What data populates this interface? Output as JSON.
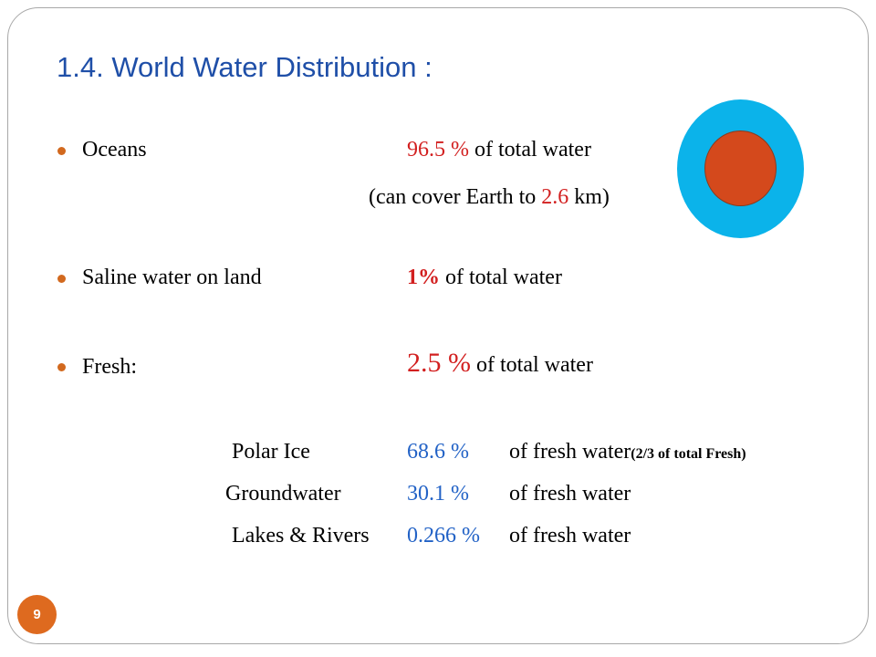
{
  "slide": {
    "title": "1.4. World Water Distribution :",
    "page_number": "9"
  },
  "oceans": {
    "label": "Oceans",
    "value": "96.5 %",
    "suffix": " of total water",
    "note_prefix": "(can cover Earth to ",
    "note_value": "2.6",
    "note_suffix": " km)"
  },
  "saline": {
    "label": "Saline water on land",
    "value": "1%",
    "suffix": "  of total water"
  },
  "fresh": {
    "label": "Fresh:",
    "value": "2.5 %",
    "suffix": " of total water"
  },
  "fresh_breakdown": [
    {
      "label": "Polar Ice",
      "value": "68.6 %",
      "suffix": "of fresh water",
      "note": "(2/3 of total Fresh)"
    },
    {
      "label": "Groundwater",
      "value": "30.1 %",
      "suffix": "of fresh water",
      "note": ""
    },
    {
      "label": "Lakes & Rivers",
      "value": "0.266 %",
      "suffix": "of fresh water",
      "note": ""
    }
  ],
  "colors": {
    "title": "#1f4fa8",
    "highlight_red": "#d21f1f",
    "highlight_blue": "#2262c6",
    "bullet": "#d2691e",
    "ocean_circle": "#0bb3ea",
    "earth_circle": "#d4491c",
    "page_badge": "#de6a1f"
  },
  "icons": {
    "illustration": "earth-water-circles-icon",
    "bullet": "round-bullet-icon"
  }
}
